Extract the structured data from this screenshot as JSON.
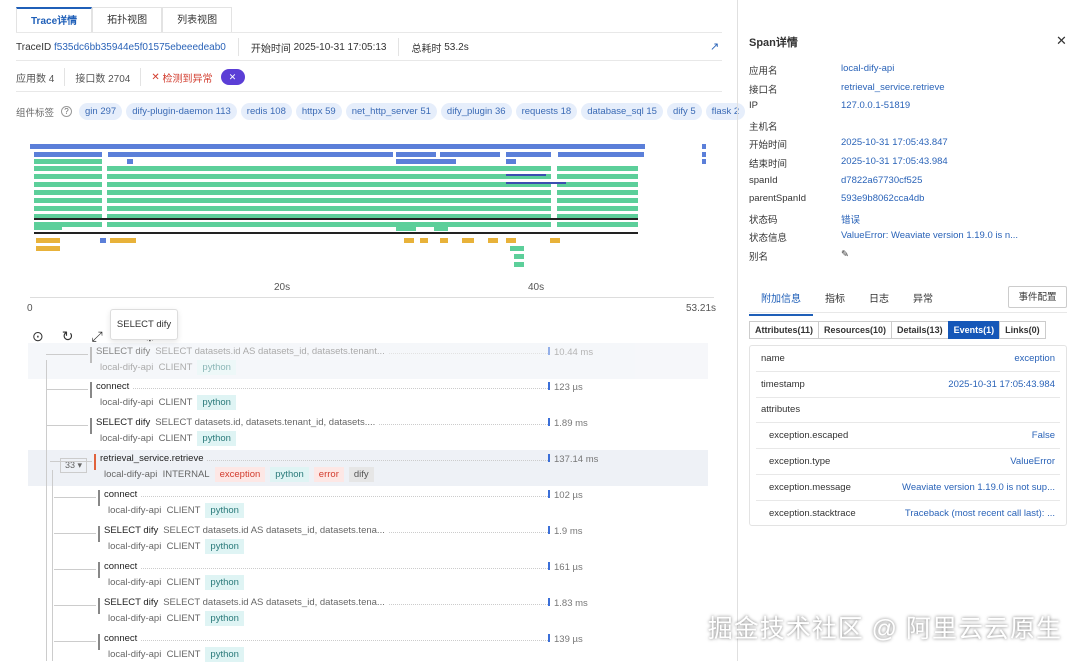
{
  "tabs": [
    "Trace详情",
    "拓扑视图",
    "列表视图"
  ],
  "trace": {
    "trace_id_label": "TraceID",
    "trace_id": "f535dc6bb35944e5f01575ebeeedeab0",
    "start_label": "开始时间",
    "start": "2025-10-31 17:05:13",
    "total_label": "总耗时",
    "total": "53.2s",
    "apps": "应用数 4",
    "endpoints": "接口数 2704",
    "anomaly": "检测到异常"
  },
  "component_tags_label": "组件标签",
  "component_tags": [
    "gin 297",
    "dify-plugin-daemon 113",
    "redis 108",
    "httpx 59",
    "net_http_server 51",
    "dify_plugin 36",
    "requests 18",
    "database_sql 15",
    "dify 5",
    "flask 2"
  ],
  "timeline": {
    "ticks": [
      "20s",
      "40s"
    ],
    "start": "0",
    "end": "53.21s",
    "colors": {
      "root": "#5b7fd9",
      "python": "#5ccf9a",
      "go": "#e8b23a"
    }
  },
  "tooltip": "SELECT dify",
  "spans": [
    {
      "name": "SELECT dify",
      "sql": "SELECT datasets.id AS datasets_id, datasets.tenant...",
      "app": "local-dify-api",
      "kind": "CLIENT",
      "tags": [
        "python"
      ],
      "duration": "10.44 ms"
    },
    {
      "name": "connect",
      "sql": "",
      "app": "local-dify-api",
      "kind": "CLIENT",
      "tags": [
        "python"
      ],
      "duration": "123 µs"
    },
    {
      "name": "SELECT dify",
      "sql": "SELECT datasets.id, datasets.tenant_id, datasets....",
      "app": "local-dify-api",
      "kind": "CLIENT",
      "tags": [
        "python"
      ],
      "duration": "1.89 ms"
    },
    {
      "name": "retrieval_service.retrieve",
      "sql": "",
      "app": "local-dify-api",
      "kind": "INTERNAL",
      "tags": [
        "exception",
        "python",
        "error",
        "dify"
      ],
      "duration": "137.14 ms",
      "children": "33"
    },
    {
      "name": "connect",
      "sql": "",
      "app": "local-dify-api",
      "kind": "CLIENT",
      "tags": [
        "python"
      ],
      "duration": "102 µs"
    },
    {
      "name": "SELECT dify",
      "sql": "SELECT datasets.id AS datasets_id, datasets.tena...",
      "app": "local-dify-api",
      "kind": "CLIENT",
      "tags": [
        "python"
      ],
      "duration": "1.9 ms"
    },
    {
      "name": "connect",
      "sql": "",
      "app": "local-dify-api",
      "kind": "CLIENT",
      "tags": [
        "python"
      ],
      "duration": "161 µs"
    },
    {
      "name": "SELECT dify",
      "sql": "SELECT datasets.id AS datasets_id, datasets.tena...",
      "app": "local-dify-api",
      "kind": "CLIENT",
      "tags": [
        "python"
      ],
      "duration": "1.83 ms"
    },
    {
      "name": "connect",
      "sql": "",
      "app": "local-dify-api",
      "kind": "CLIENT",
      "tags": [
        "python"
      ],
      "duration": "139 µs"
    }
  ],
  "span_detail": {
    "title": "Span详情",
    "fields": [
      {
        "k": "应用名",
        "v": "local-dify-api"
      },
      {
        "k": "接口名",
        "v": "retrieval_service.retrieve"
      },
      {
        "k": "IP",
        "v": "127.0.0.1-51819"
      },
      {
        "k": "主机名",
        "v": ""
      },
      {
        "k": "开始时间",
        "v": "2025-10-31 17:05:43.847"
      },
      {
        "k": "结束时间",
        "v": "2025-10-31 17:05:43.984"
      },
      {
        "k": "spanId",
        "v": "d7822a67730cf525"
      },
      {
        "k": "parentSpanId",
        "v": "593e9b8062cca4db"
      },
      {
        "k": "状态码",
        "v": "错误"
      },
      {
        "k": "状态信息",
        "v": "ValueError: Weaviate version 1.19.0 is n..."
      },
      {
        "k": "别名",
        "v": ""
      }
    ],
    "tabs": [
      "附加信息",
      "指标",
      "日志",
      "异常"
    ],
    "event_config": "事件配置",
    "subtabs": [
      "Attributes(11)",
      "Resources(10)",
      "Details(13)",
      "Events(1)",
      "Links(0)"
    ],
    "events": [
      {
        "k": "name",
        "v": "exception"
      },
      {
        "k": "timestamp",
        "v": "2025-10-31 17:05:43.984"
      },
      {
        "k": "attributes",
        "v": ""
      },
      {
        "k": "exception.escaped",
        "v": "False"
      },
      {
        "k": "exception.type",
        "v": "ValueError"
      },
      {
        "k": "exception.message",
        "v": "Weaviate version 1.19.0 is not sup..."
      },
      {
        "k": "exception.stacktrace",
        "v": "Traceback (most recent call last): ..."
      }
    ]
  },
  "watermark": "掘金技术社区 @ 阿里云云原生"
}
